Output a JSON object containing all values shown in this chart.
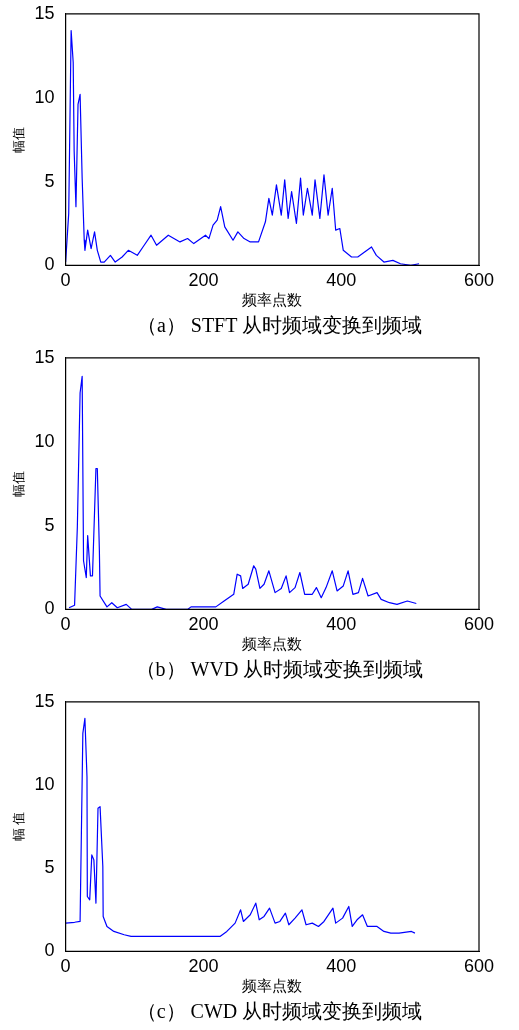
{
  "chart_data": [
    {
      "type": "line",
      "title": "（a） STFT 从时频域变换到频域",
      "xlabel": "频率点数",
      "ylabel": "幅值",
      "xlim": [
        0,
        600
      ],
      "ylim": [
        0,
        15
      ],
      "xticks": [
        0,
        200,
        400,
        600
      ],
      "yticks": [
        0,
        5,
        10,
        15
      ],
      "series": [
        {
          "color": "#0000ff",
          "x": [
            0,
            4.5,
            8,
            11,
            12.4,
            15,
            18,
            21,
            24,
            27,
            28,
            32,
            37,
            42,
            46,
            51,
            56,
            65,
            72,
            82,
            91,
            104,
            114,
            124,
            132,
            149,
            166,
            177,
            186,
            203,
            208,
            214,
            220,
            225,
            231,
            243,
            250,
            259,
            268,
            280,
            290,
            295,
            300,
            306,
            313,
            318,
            323,
            328,
            335,
            341,
            345,
            351,
            358,
            362,
            369,
            375,
            381,
            387,
            392,
            398,
            403,
            415,
            424,
            434,
            444,
            451,
            462,
            475,
            486,
            501,
            513
          ],
          "values": [
            0.2,
            3.1,
            14,
            12.1,
            6.8,
            3.5,
            9.6,
            10.2,
            5.2,
            1.5,
            0.9,
            2.1,
            1.0,
            2.0,
            0.9,
            0.2,
            0.2,
            0.6,
            0.2,
            0.5,
            0.9,
            0.6,
            1.2,
            1.8,
            1.2,
            1.8,
            1.4,
            1.6,
            1.3,
            1.8,
            1.6,
            2.4,
            2.7,
            3.5,
            2.3,
            1.5,
            2.0,
            1.6,
            1.4,
            1.4,
            2.6,
            4.0,
            3.0,
            4.8,
            3.0,
            5.1,
            2.8,
            4.4,
            2.5,
            5.2,
            3.0,
            4.6,
            3.0,
            5.1,
            2.8,
            5.4,
            3.0,
            4.6,
            2.1,
            2.2,
            0.9,
            0.5,
            0.5,
            0.8,
            1.1,
            0.6,
            0.2,
            0.3,
            0.1,
            0,
            0.1
          ]
        }
      ]
    },
    {
      "type": "line",
      "title": "（b） WVD 从时频域变换到频域",
      "xlabel": "频率点数",
      "ylabel": "幅值",
      "xlim": [
        0,
        600
      ],
      "ylim": [
        0,
        15
      ],
      "xticks": [
        0,
        200,
        400,
        600
      ],
      "yticks": [
        0,
        5,
        10,
        15
      ],
      "series": [
        {
          "color": "#0000ff",
          "x": [
            5,
            13,
            17,
            21,
            24,
            26,
            30,
            32,
            36,
            39,
            44,
            46,
            49,
            50,
            60,
            67,
            75,
            88,
            96,
            125,
            133,
            146,
            177,
            182,
            218,
            230,
            244,
            249,
            254,
            257,
            265,
            273,
            276,
            282,
            288,
            295,
            304,
            313,
            320,
            325,
            333,
            340,
            347,
            358,
            364,
            371,
            378,
            387,
            394,
            403,
            410,
            417,
            425,
            431,
            439,
            452,
            458,
            470,
            481,
            496,
            509
          ],
          "values": [
            0.1,
            0.25,
            4.9,
            12.9,
            13.9,
            2.9,
            1.9,
            4.4,
            2.0,
            2.0,
            8.4,
            8.4,
            3.5,
            0.8,
            0.15,
            0.4,
            0.1,
            0.3,
            0,
            0,
            0.15,
            0,
            0,
            0.15,
            0.15,
            0.5,
            0.9,
            2.1,
            2.0,
            1.25,
            1.5,
            2.6,
            2.4,
            1.25,
            1.5,
            2.3,
            1.0,
            1.25,
            2.0,
            1.0,
            1.3,
            2.2,
            0.9,
            0.9,
            1.3,
            0.7,
            1.3,
            2.3,
            1.1,
            1.4,
            2.3,
            0.9,
            1.0,
            1.85,
            0.8,
            1.0,
            0.6,
            0.4,
            0.3,
            0.5,
            0.35
          ]
        }
      ]
    },
    {
      "type": "line",
      "title": "（c） CWD 从时频域变换到频域",
      "xlabel": "频率点数",
      "ylabel": "幅 值",
      "xlim": [
        0,
        600
      ],
      "ylim": [
        0,
        15
      ],
      "xticks": [
        0,
        200,
        400,
        600
      ],
      "yticks": [
        0,
        5,
        10,
        15
      ],
      "series": [
        {
          "color": "#0000ff",
          "x": [
            0,
            13,
            21,
            25,
            28,
            31,
            31.5,
            35,
            38,
            41,
            44,
            47,
            50,
            54,
            54.5,
            60,
            70,
            85,
            95,
            110,
            224,
            234,
            246,
            254,
            258,
            268,
            276,
            281,
            288,
            296,
            304,
            311,
            319,
            324,
            333,
            343,
            349,
            358,
            367,
            375,
            388,
            392,
            402,
            411,
            416,
            423,
            431,
            438,
            452,
            462,
            472,
            484,
            502,
            507
          ],
          "values": [
            1.7,
            1.75,
            1.8,
            13.1,
            14.0,
            10.5,
            3.3,
            3.1,
            5.8,
            5.5,
            2.9,
            8.6,
            8.7,
            5.1,
            2.1,
            1.5,
            1.2,
            1.0,
            0.9,
            0.9,
            0.9,
            1.2,
            1.7,
            2.5,
            1.8,
            2.2,
            2.9,
            1.9,
            2.1,
            2.6,
            1.7,
            1.8,
            2.3,
            1.6,
            2.0,
            2.5,
            1.6,
            1.7,
            1.5,
            1.8,
            2.6,
            1.7,
            2.0,
            2.7,
            1.5,
            1.9,
            2.2,
            1.5,
            1.5,
            1.2,
            1.1,
            1.1,
            1.2,
            1.1
          ]
        }
      ]
    }
  ]
}
